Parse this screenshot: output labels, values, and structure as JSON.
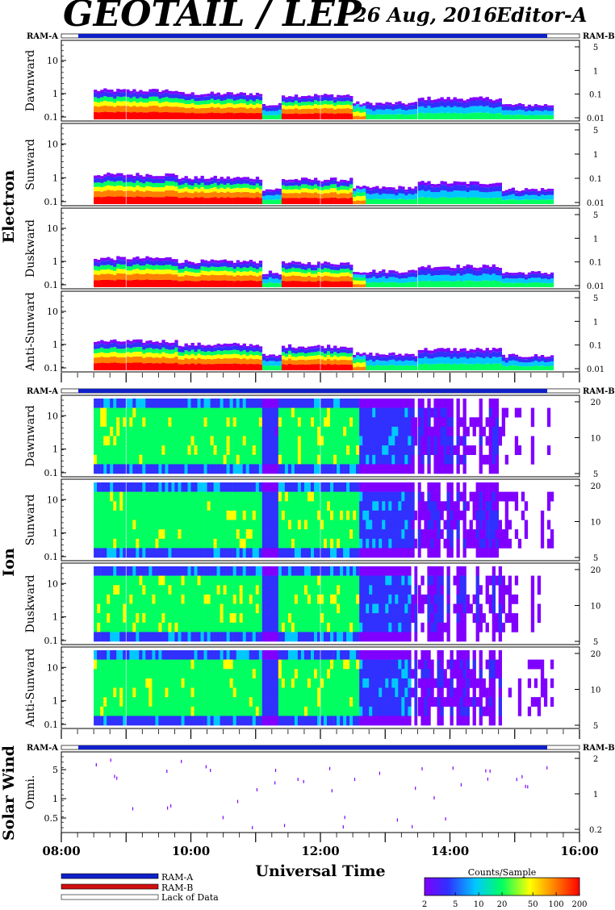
{
  "header": {
    "title": "GEOTAIL / LEP",
    "date": "26 Aug, 2016",
    "editor": "Editor-A"
  },
  "colors": {
    "ram_a": "#1020c8",
    "ram_b": "#d01010",
    "lack_of_data": "#ffffff",
    "spectrogram_scale": [
      "#8000ff",
      "#3030ff",
      "#00c8ff",
      "#00ff60",
      "#ffff00",
      "#ff8000",
      "#ff0000"
    ]
  },
  "chart_data": {
    "type": "heatmap",
    "xlabel": "Universal Time",
    "x_ticks": [
      "08:00",
      "10:00",
      "12:00",
      "14:00",
      "16:00"
    ],
    "x_range_hours": [
      8.0,
      16.0
    ],
    "data_coverage_hours": [
      8.5,
      15.6
    ],
    "mode_bars": {
      "left_label": "RAM-A",
      "right_label": "RAM-B",
      "ram_a_interval_hours": [
        8.5,
        15.6
      ]
    },
    "groups": [
      {
        "name": "Electron",
        "panels": [
          {
            "label": "Dawnward",
            "y_ticks": [
              "10",
              "1",
              "0.1"
            ],
            "right_ticks": [
              "5",
              "1",
              "0.1",
              "0.01"
            ],
            "profile": "electron"
          },
          {
            "label": "Sunward",
            "y_ticks": [
              "10",
              "1",
              "0.1"
            ],
            "right_ticks": [
              "5",
              "1",
              "0.1",
              "0.01"
            ],
            "profile": "electron"
          },
          {
            "label": "Duskward",
            "y_ticks": [
              "10",
              "1",
              "0.1"
            ],
            "right_ticks": [
              "5",
              "1",
              "0.1",
              "0.01"
            ],
            "profile": "electron"
          },
          {
            "label": "Anti-Sunward",
            "y_ticks": [
              "10",
              "1",
              "0.1"
            ],
            "right_ticks": [
              "5",
              "1",
              "0.1",
              "0.01"
            ],
            "profile": "electron"
          }
        ]
      },
      {
        "name": "Ion",
        "panels": [
          {
            "label": "Dawnward",
            "y_ticks": [
              "10",
              "1",
              "0.1"
            ],
            "right_ticks": [
              "20",
              "10",
              "5"
            ],
            "profile": "ion"
          },
          {
            "label": "Sunward",
            "y_ticks": [
              "10",
              "1",
              "0.1"
            ],
            "right_ticks": [
              "20",
              "10",
              "5"
            ],
            "profile": "ion"
          },
          {
            "label": "Duskward",
            "y_ticks": [
              "10",
              "1",
              "0.1"
            ],
            "right_ticks": [
              "20",
              "10",
              "5"
            ],
            "profile": "ion"
          },
          {
            "label": "Anti-Sunward",
            "y_ticks": [
              "10",
              "1",
              "0.1"
            ],
            "right_ticks": [
              "20",
              "10",
              "5"
            ],
            "profile": "ion"
          }
        ]
      },
      {
        "name": "Solar Wind",
        "panels": [
          {
            "label": "Omni.",
            "y_ticks": [
              "5",
              "1",
              "0.5"
            ],
            "right_ticks": [
              "2",
              "1",
              "0.2"
            ],
            "profile": "solarwind"
          }
        ]
      }
    ],
    "legend": {
      "items": [
        {
          "label": "RAM-A",
          "color": "#1020c8"
        },
        {
          "label": "RAM-B",
          "color": "#d01010"
        },
        {
          "label": "Lack of Data",
          "color": "#ffffff"
        }
      ]
    },
    "colorbar": {
      "title": "Counts/Sample",
      "ticks": [
        "2",
        "5",
        "10",
        "20",
        "50",
        "100",
        "200"
      ],
      "log_range": [
        2,
        200
      ]
    }
  }
}
